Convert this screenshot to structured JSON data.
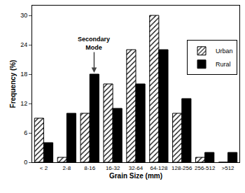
{
  "chart_data": {
    "type": "bar",
    "categories": [
      "< 2",
      "2-8",
      "8-16",
      "16-32",
      "32-64",
      "64-128",
      "128-256",
      "256-512",
      ">512"
    ],
    "series": [
      {
        "name": "Urban",
        "color": "#ffffff",
        "marker": "hatch",
        "values": [
          9,
          1,
          10,
          16,
          23,
          30,
          10,
          1,
          0
        ]
      },
      {
        "name": "Rural",
        "color": "#000000",
        "values": [
          4,
          10,
          18,
          11,
          16,
          23,
          13,
          2,
          2
        ]
      }
    ],
    "x_label": "Grain Size (mm)",
    "y_label": "Frequency (%)",
    "ylim": [
      0,
      32
    ],
    "yticks": [
      0,
      6,
      12,
      18,
      24,
      30
    ],
    "grid": false,
    "legend": "upper right",
    "annotations": [
      {
        "text": "Secondary Mode",
        "category": "8-16",
        "series": "Rural"
      }
    ]
  }
}
